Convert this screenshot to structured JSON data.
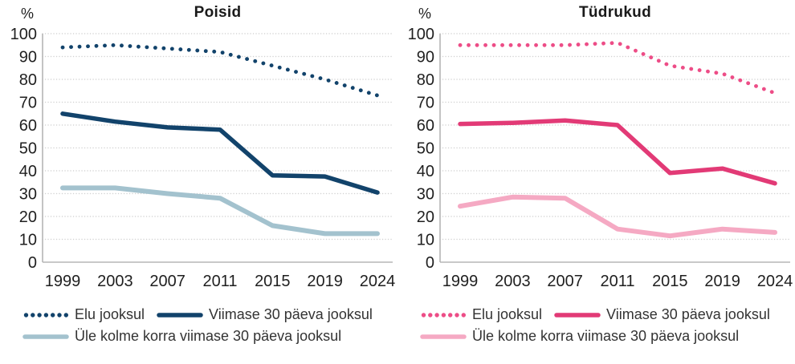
{
  "figure": {
    "background": "#ffffff"
  },
  "chart_data": [
    {
      "type": "line",
      "title": "Poisid",
      "ylabel": "%",
      "xlabel": "",
      "categories": [
        "1999",
        "2003",
        "2007",
        "2011",
        "2015",
        "2019",
        "2024"
      ],
      "ylim": [
        0,
        100
      ],
      "ytick_step": 10,
      "grid": "horizontal-dotted",
      "legend_position": "bottom",
      "series": [
        {
          "name": "Elu jooksul",
          "style": "dotted",
          "color": "#12436B",
          "values": [
            94,
            95,
            93.5,
            92,
            86,
            80,
            73
          ]
        },
        {
          "name": "Viimase 30 päeva jooksul",
          "style": "solid",
          "color": "#12436B",
          "values": [
            65,
            61.5,
            59,
            58,
            38,
            37.5,
            30.5
          ]
        },
        {
          "name": "Üle kolme korra viimase 30 päeva jooksul",
          "style": "solid",
          "color": "#A3C2CE",
          "values": [
            32.5,
            32.5,
            30,
            28,
            16,
            12.5,
            12.5
          ]
        }
      ]
    },
    {
      "type": "line",
      "title": "Tüdrukud",
      "ylabel": "%",
      "xlabel": "",
      "categories": [
        "1999",
        "2003",
        "2007",
        "2011",
        "2015",
        "2019",
        "2024"
      ],
      "ylim": [
        0,
        100
      ],
      "ytick_step": 10,
      "grid": "horizontal-dotted",
      "legend_position": "bottom",
      "series": [
        {
          "name": "Elu jooksul",
          "style": "dotted",
          "color": "#ED4D87",
          "values": [
            95,
            95,
            95,
            96,
            86,
            82.5,
            74
          ]
        },
        {
          "name": "Viimase 30 päeva jooksul",
          "style": "solid",
          "color": "#E23A76",
          "values": [
            60.5,
            61,
            62,
            60,
            39,
            41,
            34.5
          ]
        },
        {
          "name": "Üle kolme korra viimase 30 päeva jooksul",
          "style": "solid",
          "color": "#F5A9C3",
          "values": [
            24.5,
            28.5,
            28,
            14.5,
            11.5,
            14.5,
            13
          ]
        }
      ]
    }
  ]
}
